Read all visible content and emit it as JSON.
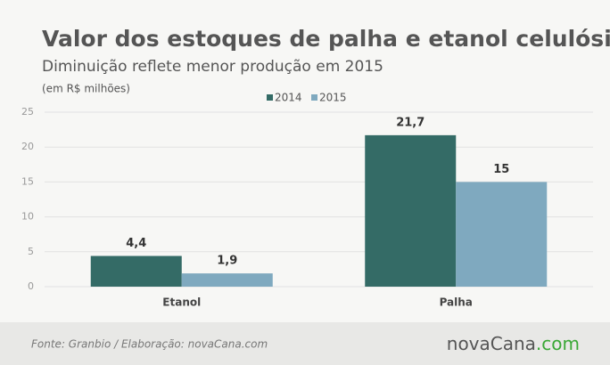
{
  "chart_data": {
    "type": "bar",
    "title": "Valor dos estoques de palha e etanol celulósico",
    "subtitle": "Diminuição reflete menor produção em 2015",
    "unit_label": "(em R$ milhões)",
    "categories": [
      "Etanol",
      "Palha"
    ],
    "series": [
      {
        "name": "2014",
        "color": "#346b66",
        "values": [
          4.4,
          21.7
        ],
        "value_labels": [
          "4,4",
          "21,7"
        ]
      },
      {
        "name": "2015",
        "color": "#7fa9bf",
        "values": [
          1.9,
          15
        ],
        "value_labels": [
          "1,9",
          "15"
        ]
      }
    ],
    "ylim": [
      0,
      25
    ],
    "yticks": [
      0,
      5,
      10,
      15,
      20,
      25
    ],
    "grid": true,
    "legend": "top",
    "source": "Fonte:  Granbio / Elaboração:  novaCana.com",
    "logo": {
      "name": "novaCana",
      "suffix": ".com"
    }
  }
}
